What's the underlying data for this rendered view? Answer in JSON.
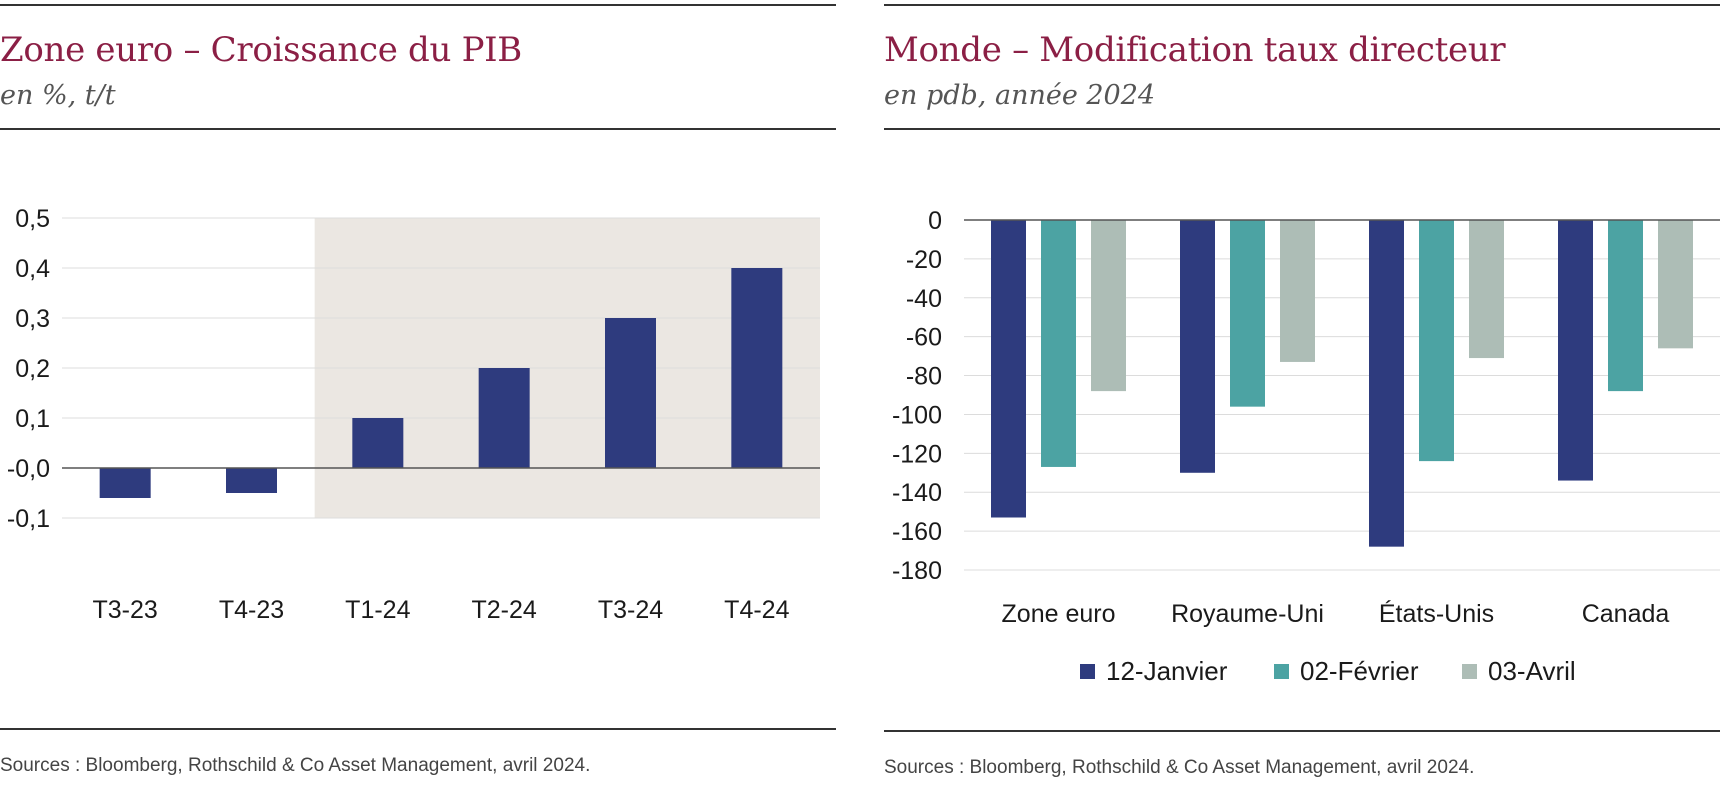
{
  "colors": {
    "title": "#8b1f45",
    "shade": "#ebe7e2",
    "series_navy": "#2e3b7e",
    "series_teal": "#4ca3a3",
    "series_grey": "#adbdb6",
    "gridline": "#dcdcdc",
    "axis": "#555555"
  },
  "left": {
    "title": "Zone euro – Croissance du PIB",
    "subtitle": "en %, t/t",
    "source": "Sources : Bloomberg, Rothschild & Co Asset Management, avril 2024."
  },
  "right": {
    "title": "Monde – Modification taux directeur",
    "subtitle": "en pdb, année 2024",
    "source": "Sources : Bloomberg, Rothschild & Co Asset Management, avril 2024."
  },
  "chart_data": [
    {
      "type": "bar",
      "title": "Zone euro – Croissance du PIB",
      "subtitle": "en %, t/t",
      "categories": [
        "T3-23",
        "T4-23",
        "T1-24",
        "T2-24",
        "T3-24",
        "T4-24"
      ],
      "values": [
        -0.06,
        -0.05,
        0.1,
        0.2,
        0.3,
        0.4
      ],
      "ylim": [
        -0.1,
        0.5
      ],
      "yticks": [
        0.5,
        0.4,
        0.3,
        0.2,
        0.1,
        -0.0,
        -0.1
      ],
      "ytick_labels": [
        "0,5",
        "0,4",
        "0,3",
        "0,2",
        "0,1",
        "-0,0",
        "-0,1"
      ],
      "shaded_categories": [
        "T1-24",
        "T2-24",
        "T3-24",
        "T4-24"
      ],
      "grid": true,
      "xlabel": "",
      "ylabel": ""
    },
    {
      "type": "bar",
      "title": "Monde – Modification taux directeur",
      "subtitle": "en pdb, année 2024",
      "categories": [
        "Zone euro",
        "Royaume-Uni",
        "États-Unis",
        "Canada"
      ],
      "series": [
        {
          "name": "12-Janvier",
          "values": [
            -153,
            -130,
            -168,
            -134
          ]
        },
        {
          "name": "02-Février",
          "values": [
            -127,
            -96,
            -124,
            -88
          ]
        },
        {
          "name": "03-Avril",
          "values": [
            -88,
            -73,
            -71,
            -66
          ]
        }
      ],
      "ylim": [
        -180,
        0
      ],
      "yticks": [
        0,
        -20,
        -40,
        -60,
        -80,
        -100,
        -120,
        -140,
        -160,
        -180
      ],
      "ytick_labels": [
        "0",
        "-20",
        "-40",
        "-60",
        "-80",
        "-100",
        "-120",
        "-140",
        "-160",
        "-180"
      ],
      "legend": "bottom",
      "grid": true,
      "xlabel": "",
      "ylabel": ""
    }
  ]
}
